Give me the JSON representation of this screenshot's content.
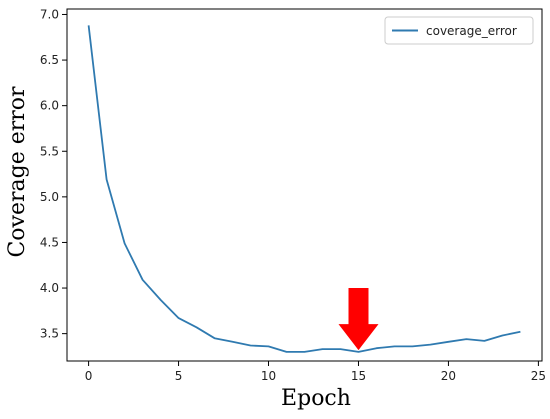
{
  "chart_data": {
    "type": "line",
    "xlabel": "Epoch",
    "ylabel": "Coverage error",
    "xlim": [
      -1.2,
      25.2
    ],
    "ylim": [
      3.2,
      7.06
    ],
    "xticks": [
      0,
      5,
      10,
      15,
      20,
      25
    ],
    "yticks": [
      3.5,
      4.0,
      4.5,
      5.0,
      5.5,
      6.0,
      6.5,
      7.0
    ],
    "ytick_labels": [
      "3.5",
      "4.0",
      "4.5",
      "5.0",
      "5.5",
      "6.0",
      "6.5",
      "7.0"
    ],
    "grid": false,
    "legend_position": "top-right",
    "series": [
      {
        "name": "coverage_error",
        "color": "#2f7ab0",
        "x": [
          0,
          1,
          2,
          3,
          4,
          5,
          6,
          7,
          8,
          9,
          10,
          11,
          12,
          13,
          14,
          15,
          16,
          17,
          18,
          19,
          20,
          21,
          22,
          23,
          24
        ],
        "values": [
          6.88,
          5.19,
          4.49,
          4.09,
          3.87,
          3.67,
          3.57,
          3.45,
          3.41,
          3.37,
          3.36,
          3.3,
          3.3,
          3.33,
          3.33,
          3.3,
          3.34,
          3.36,
          3.36,
          3.38,
          3.41,
          3.44,
          3.42,
          3.48,
          3.52
        ]
      }
    ],
    "annotation": {
      "type": "arrow",
      "direction": "down",
      "x": 15,
      "y_top": 4.0,
      "y_tip": 3.32,
      "color": "#ff0000"
    }
  }
}
